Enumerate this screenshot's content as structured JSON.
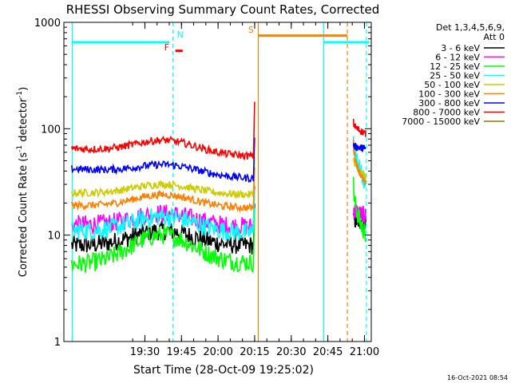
{
  "chart_data": {
    "type": "line",
    "title": "RHESSI Observing Summary Count Rates, Corrected",
    "xlabel": "Start Time (28-Oct-09 19:25:02)",
    "ylabel_main": "Corrected Count Rate (s",
    "ylabel_sup1": "-1",
    "ylabel_mid": " detector",
    "ylabel_sup2": "-1",
    "ylabel_end": ")",
    "y_scale": "log",
    "ylim": [
      1,
      1000
    ],
    "xlim": [
      "19:25:02",
      "21:03:00"
    ],
    "x_ticks": [
      {
        "t": 30,
        "label": "19:30"
      },
      {
        "t": 45,
        "label": "19:45"
      },
      {
        "t": 60,
        "label": "20:00"
      },
      {
        "t": 75,
        "label": "20:15"
      },
      {
        "t": 90,
        "label": "20:30"
      },
      {
        "t": 105,
        "label": "20:45"
      },
      {
        "t": 120,
        "label": "21:00"
      }
    ],
    "y_ticks": [
      {
        "v": 1,
        "label": "1"
      },
      {
        "v": 10,
        "label": "10"
      },
      {
        "v": 100,
        "label": "100"
      },
      {
        "v": 1000,
        "label": "1000"
      }
    ],
    "legend_header": [
      "Det 1,3,4,5,6,9,",
      "Att 0"
    ],
    "legend_position": "top-right",
    "series": [
      {
        "name": "3 - 6 keV",
        "color": "#000000",
        "pre": [
          8,
          11,
          8
        ],
        "post_start": 14,
        "post_end": 13.5
      },
      {
        "name": "6 - 12 keV",
        "color": "#ff00ff",
        "pre": [
          12.5,
          16,
          12
        ],
        "post_start": 18,
        "post_end": 15
      },
      {
        "name": "12 - 25 keV",
        "color": "#00ff00",
        "pre": [
          5.3,
          10,
          5.5
        ],
        "post_start": 30,
        "post_end": 10
      },
      {
        "name": "25 - 50 keV",
        "color": "#00ffff",
        "pre": [
          11,
          15,
          10.5
        ],
        "post_start": 90,
        "post_end": 30
      },
      {
        "name": "50 - 100 keV",
        "color": "#cccc00",
        "pre": [
          25,
          30,
          24
        ],
        "post_start": 55,
        "post_end": 35
      },
      {
        "name": "100 - 300 keV",
        "color": "#ff7f00",
        "pre": [
          19,
          24,
          18
        ],
        "post_start": 75,
        "post_end": 30
      },
      {
        "name": "300 - 800 keV",
        "color": "#0000ff",
        "pre": [
          42,
          46,
          34
        ],
        "post_start": 70,
        "post_end": 65
      },
      {
        "name": "800 - 7000 keV",
        "color": "#ff0000",
        "pre": [
          65,
          78,
          55
        ],
        "post_start": 115,
        "post_end": 90
      },
      {
        "name": "7000 - 15000 keV",
        "color": "#808000",
        "pre": null,
        "post_start": null,
        "post_end": null
      }
    ],
    "pre_range": [
      0,
      74.5
    ],
    "post_range": [
      115.5,
      120.5
    ],
    "vertical_lines": [
      {
        "t": 0.2,
        "color": "#00ffff",
        "style": "solid"
      },
      {
        "t": 41.5,
        "color": "#00ffff",
        "style": "dashed"
      },
      {
        "t": 76.5,
        "color": "#ff7f00",
        "style": "solid"
      },
      {
        "t": 103.3,
        "color": "#00ffff",
        "style": "solid"
      },
      {
        "t": 113.0,
        "color": "#ff7f00",
        "style": "dashed"
      },
      {
        "t": 120.8,
        "color": "#00ffff",
        "style": "dashed"
      }
    ],
    "flag_bars": [
      {
        "t0": 0,
        "t1": 40,
        "y": 650,
        "color": "#00ffff"
      },
      {
        "t0": 103.3,
        "t1": 122,
        "y": 650,
        "color": "#00ffff"
      },
      {
        "t0": 76.5,
        "t1": 113,
        "y": 750,
        "color": "#ff7f00"
      },
      {
        "t0": 42.5,
        "t1": 45.5,
        "y": 540,
        "color": "#ff0000"
      }
    ],
    "flag_labels": [
      {
        "text": "N",
        "t": 44.5,
        "y": 720,
        "color": "#00ffff"
      },
      {
        "text": "S",
        "t": 73.5,
        "y": 800,
        "color": "#ff7f00"
      },
      {
        "text": "F",
        "t": 39,
        "y": 545,
        "color": "#ff0000"
      }
    ]
  },
  "timestamp": "16-Oct-2021 08:54"
}
